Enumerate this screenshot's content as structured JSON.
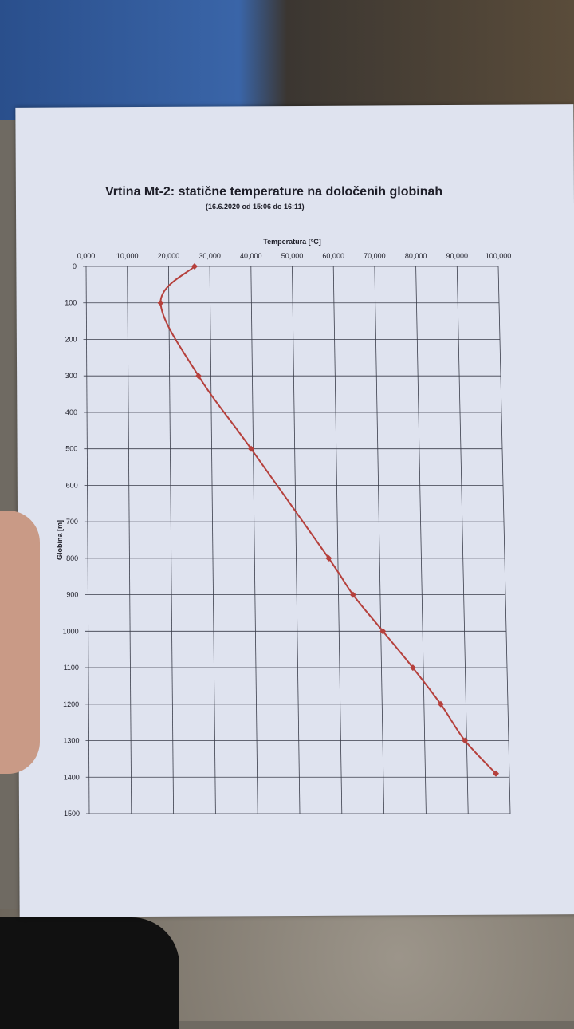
{
  "chart_data": {
    "type": "line",
    "title": "Vrtina Mt-2: statične temperature na določenih globinah",
    "subtitle": "(16.6.2020 od 15:06 do 16:11)",
    "xlabel": "Temperatura [°C]",
    "ylabel": "Globina [m]",
    "xlim": [
      0,
      100
    ],
    "ylim": [
      0,
      1500
    ],
    "y_inverted": true,
    "x_axis_position": "top",
    "grid": true,
    "x_ticks": [
      "0,000",
      "10,000",
      "20,000",
      "30,000",
      "40,000",
      "50,000",
      "60,000",
      "70,000",
      "80,000",
      "90,000",
      "100,000"
    ],
    "y_ticks": [
      "0",
      "100",
      "200",
      "300",
      "400",
      "500",
      "600",
      "700",
      "800",
      "900",
      "1000",
      "1100",
      "1200",
      "1300",
      "1400",
      "1500"
    ],
    "series": [
      {
        "color": "#b5403c",
        "marker": "diamond",
        "smooth": true,
        "points": [
          {
            "temperature": 26.3,
            "depth": 0
          },
          {
            "temperature": 18.0,
            "depth": 100
          },
          {
            "temperature": 27.0,
            "depth": 300
          },
          {
            "temperature": 39.5,
            "depth": 500
          },
          {
            "temperature": 57.8,
            "depth": 800
          },
          {
            "temperature": 63.5,
            "depth": 900
          },
          {
            "temperature": 70.5,
            "depth": 1000
          },
          {
            "temperature": 77.5,
            "depth": 1100
          },
          {
            "temperature": 84.0,
            "depth": 1200
          },
          {
            "temperature": 89.6,
            "depth": 1300
          },
          {
            "temperature": 96.8,
            "depth": 1390
          }
        ]
      }
    ]
  }
}
